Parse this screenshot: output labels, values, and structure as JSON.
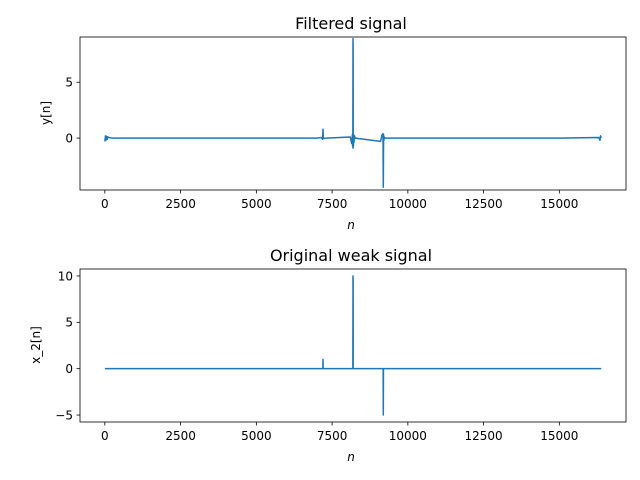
{
  "chart_data": [
    {
      "type": "line",
      "title": "Filtered signal",
      "xlabel": "n",
      "ylabel": "y[n]",
      "xlim": [
        -820,
        17200
      ],
      "ylim": [
        -4.65,
        9.05
      ],
      "xticks": [
        0,
        2500,
        5000,
        7500,
        10000,
        12500,
        15000
      ],
      "xtick_labels": [
        "0",
        "2500",
        "5000",
        "7500",
        "10000",
        "12500",
        "15000"
      ],
      "yticks": [
        0,
        5
      ],
      "ytick_labels": [
        "0",
        "5"
      ],
      "grid": false,
      "color": "#1f77b4",
      "series": [
        {
          "x": [
            0,
            20,
            40,
            60,
            80,
            100,
            140,
            200,
            300,
            1000,
            3000,
            5000,
            7000,
            7150,
            7180,
            7190,
            7200,
            7210,
            7220,
            7300,
            8100,
            8150,
            8170,
            8180,
            8185,
            8190,
            8192,
            8194,
            8196,
            8200,
            8205,
            8210,
            8220,
            8240,
            8260,
            9100,
            9150,
            9180,
            9190,
            9200,
            9210,
            9220,
            9250,
            9300,
            10000,
            12500,
            15000,
            16300,
            16340,
            16360,
            16383
          ],
          "y": [
            -0.3,
            0.2,
            -0.2,
            0.15,
            -0.1,
            0.1,
            0.05,
            0.02,
            0,
            0,
            0,
            0,
            0,
            0.05,
            -0.1,
            0.1,
            0.8,
            0.1,
            -0.05,
            0,
            0.1,
            -0.5,
            0.3,
            -0.8,
            0.6,
            8.9,
            -0.9,
            8.5,
            0.5,
            0.2,
            -0.7,
            0.3,
            -0.4,
            0.2,
            0,
            -0.3,
            0.3,
            0.4,
            -4.4,
            0.3,
            -0.2,
            0.1,
            0,
            0,
            0,
            0,
            0,
            0.05,
            -0.2,
            0.2,
            0
          ]
        }
      ]
    },
    {
      "type": "line",
      "title": "Original weak signal",
      "xlabel": "n",
      "ylabel": "x_2[n]",
      "xlim": [
        -820,
        17200
      ],
      "ylim": [
        -5.75,
        10.75
      ],
      "xticks": [
        0,
        2500,
        5000,
        7500,
        10000,
        12500,
        15000
      ],
      "xtick_labels": [
        "0",
        "2500",
        "5000",
        "7500",
        "10000",
        "12500",
        "15000"
      ],
      "yticks": [
        -5,
        0,
        5,
        10
      ],
      "ytick_labels": [
        "−5",
        "0",
        "5",
        "10"
      ],
      "grid": false,
      "color": "#1f77b4",
      "series": [
        {
          "x": [
            0,
            7190,
            7195,
            7200,
            7205,
            7210,
            8180,
            8185,
            8190,
            8192,
            8194,
            8196,
            8200,
            9180,
            9185,
            9190,
            9195,
            9200,
            16383
          ],
          "y": [
            0,
            0,
            0,
            1.0,
            0,
            0,
            0,
            0,
            10.0,
            0,
            9.8,
            0,
            0,
            0,
            0,
            -5.0,
            0,
            0,
            0
          ]
        }
      ]
    }
  ]
}
